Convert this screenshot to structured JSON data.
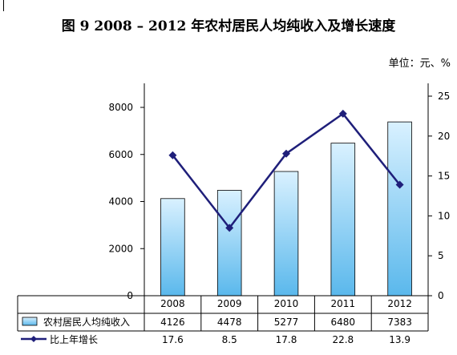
{
  "title": "图 9    2008 – 2012 年农村居民人均纯收入及增长速度",
  "unit_label": "单位：元、%",
  "colors": {
    "bar_fill_top": "#d9f1ff",
    "bar_fill_bottom": "#5ab8ec",
    "bar_stroke": "#000000",
    "line": "#1f1f7a",
    "axis": "#000000",
    "grid": "#808080"
  },
  "chart_data": {
    "type": "bar",
    "categories": [
      "2008",
      "2009",
      "2010",
      "2011",
      "2012"
    ],
    "series": [
      {
        "name": "农村居民人均纯收入",
        "type": "bar",
        "axis": "left",
        "values": [
          4126,
          4478,
          5277,
          6480,
          7383
        ]
      },
      {
        "name": "比上年增长",
        "type": "line",
        "axis": "right",
        "values": [
          17.6,
          8.5,
          17.8,
          22.8,
          13.9
        ]
      }
    ],
    "left_axis": {
      "min": 0,
      "max": 8000,
      "ticks": [
        "0",
        "2000",
        "4000",
        "6000",
        "8000"
      ]
    },
    "right_axis": {
      "min": 0,
      "max": 25,
      "ticks": [
        "0",
        "5",
        "10",
        "15",
        "20",
        "25"
      ]
    },
    "data_table": {
      "rows": [
        {
          "label": "农村居民人均纯收入",
          "values": [
            "4126",
            "4478",
            "5277",
            "6480",
            "7383"
          ]
        },
        {
          "label": "比上年增长",
          "values": [
            "17.6",
            "8.5",
            "17.8",
            "22.8",
            "13.9"
          ]
        }
      ]
    },
    "grid": false,
    "legend": "bottom-table"
  }
}
